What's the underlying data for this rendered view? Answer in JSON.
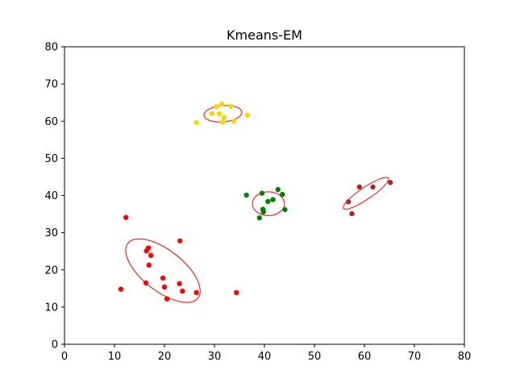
{
  "chart_data": {
    "type": "scatter",
    "title": "Kmeans-EM",
    "xlabel": "",
    "ylabel": "",
    "xlim": [
      0,
      80
    ],
    "ylim": [
      0,
      80
    ],
    "xticks": [
      0,
      10,
      20,
      30,
      40,
      50,
      60,
      70,
      80
    ],
    "yticks": [
      0,
      10,
      20,
      30,
      40,
      50,
      60,
      70,
      80
    ],
    "grid": false,
    "series": [
      {
        "color": "#ff0000",
        "points": [
          [
            12.3,
            34.1
          ],
          [
            11.3,
            14.8
          ],
          [
            16.3,
            16.5
          ],
          [
            16.4,
            25.1
          ],
          [
            16.8,
            25.9
          ],
          [
            16.9,
            21.3
          ],
          [
            17.3,
            23.9
          ],
          [
            19.7,
            17.8
          ],
          [
            20.0,
            15.4
          ],
          [
            20.5,
            12.2
          ],
          [
            23.0,
            16.3
          ],
          [
            23.1,
            27.8
          ],
          [
            23.6,
            14.3
          ],
          [
            26.4,
            13.9
          ],
          [
            34.4,
            13.9
          ]
        ]
      },
      {
        "color": "#ffd700",
        "points": [
          [
            26.4,
            59.6
          ],
          [
            29.5,
            62.0
          ],
          [
            30.4,
            63.9
          ],
          [
            31.0,
            62.0
          ],
          [
            31.5,
            64.6
          ],
          [
            31.6,
            59.7
          ],
          [
            31.9,
            61.0
          ],
          [
            33.3,
            64.0
          ],
          [
            33.9,
            60.0
          ],
          [
            36.6,
            61.6
          ]
        ]
      },
      {
        "color": "#008000",
        "points": [
          [
            36.4,
            40.1
          ],
          [
            39.0,
            34.0
          ],
          [
            39.5,
            40.6
          ],
          [
            39.7,
            36.3
          ],
          [
            39.8,
            35.6
          ],
          [
            40.7,
            38.4
          ],
          [
            41.7,
            38.9
          ],
          [
            42.7,
            41.6
          ],
          [
            43.6,
            40.3
          ],
          [
            44.1,
            36.2
          ]
        ]
      },
      {
        "color": "#a52a2a",
        "points": [
          [
            56.8,
            38.3
          ],
          [
            57.5,
            35.1
          ],
          [
            59.0,
            42.3
          ],
          [
            61.7,
            42.3
          ],
          [
            65.2,
            43.5
          ]
        ]
      }
    ],
    "ellipses": [
      {
        "color": "#ff0000",
        "center": [
          19.7,
          19.8
        ],
        "rx": 8.9,
        "ry": 5.5,
        "angle_deg": -38
      },
      {
        "color": "#ff0000",
        "center": [
          31.7,
          62.0
        ],
        "rx": 3.8,
        "ry": 2.2,
        "angle_deg": 5
      },
      {
        "color": "#ff0000",
        "center": [
          40.8,
          37.8
        ],
        "rx": 3.2,
        "ry": 3.2,
        "angle_deg": 0
      },
      {
        "color": "#ff0000",
        "center": [
          60.3,
          40.6
        ],
        "rx": 5.4,
        "ry": 1.6,
        "angle_deg": 34
      }
    ]
  }
}
